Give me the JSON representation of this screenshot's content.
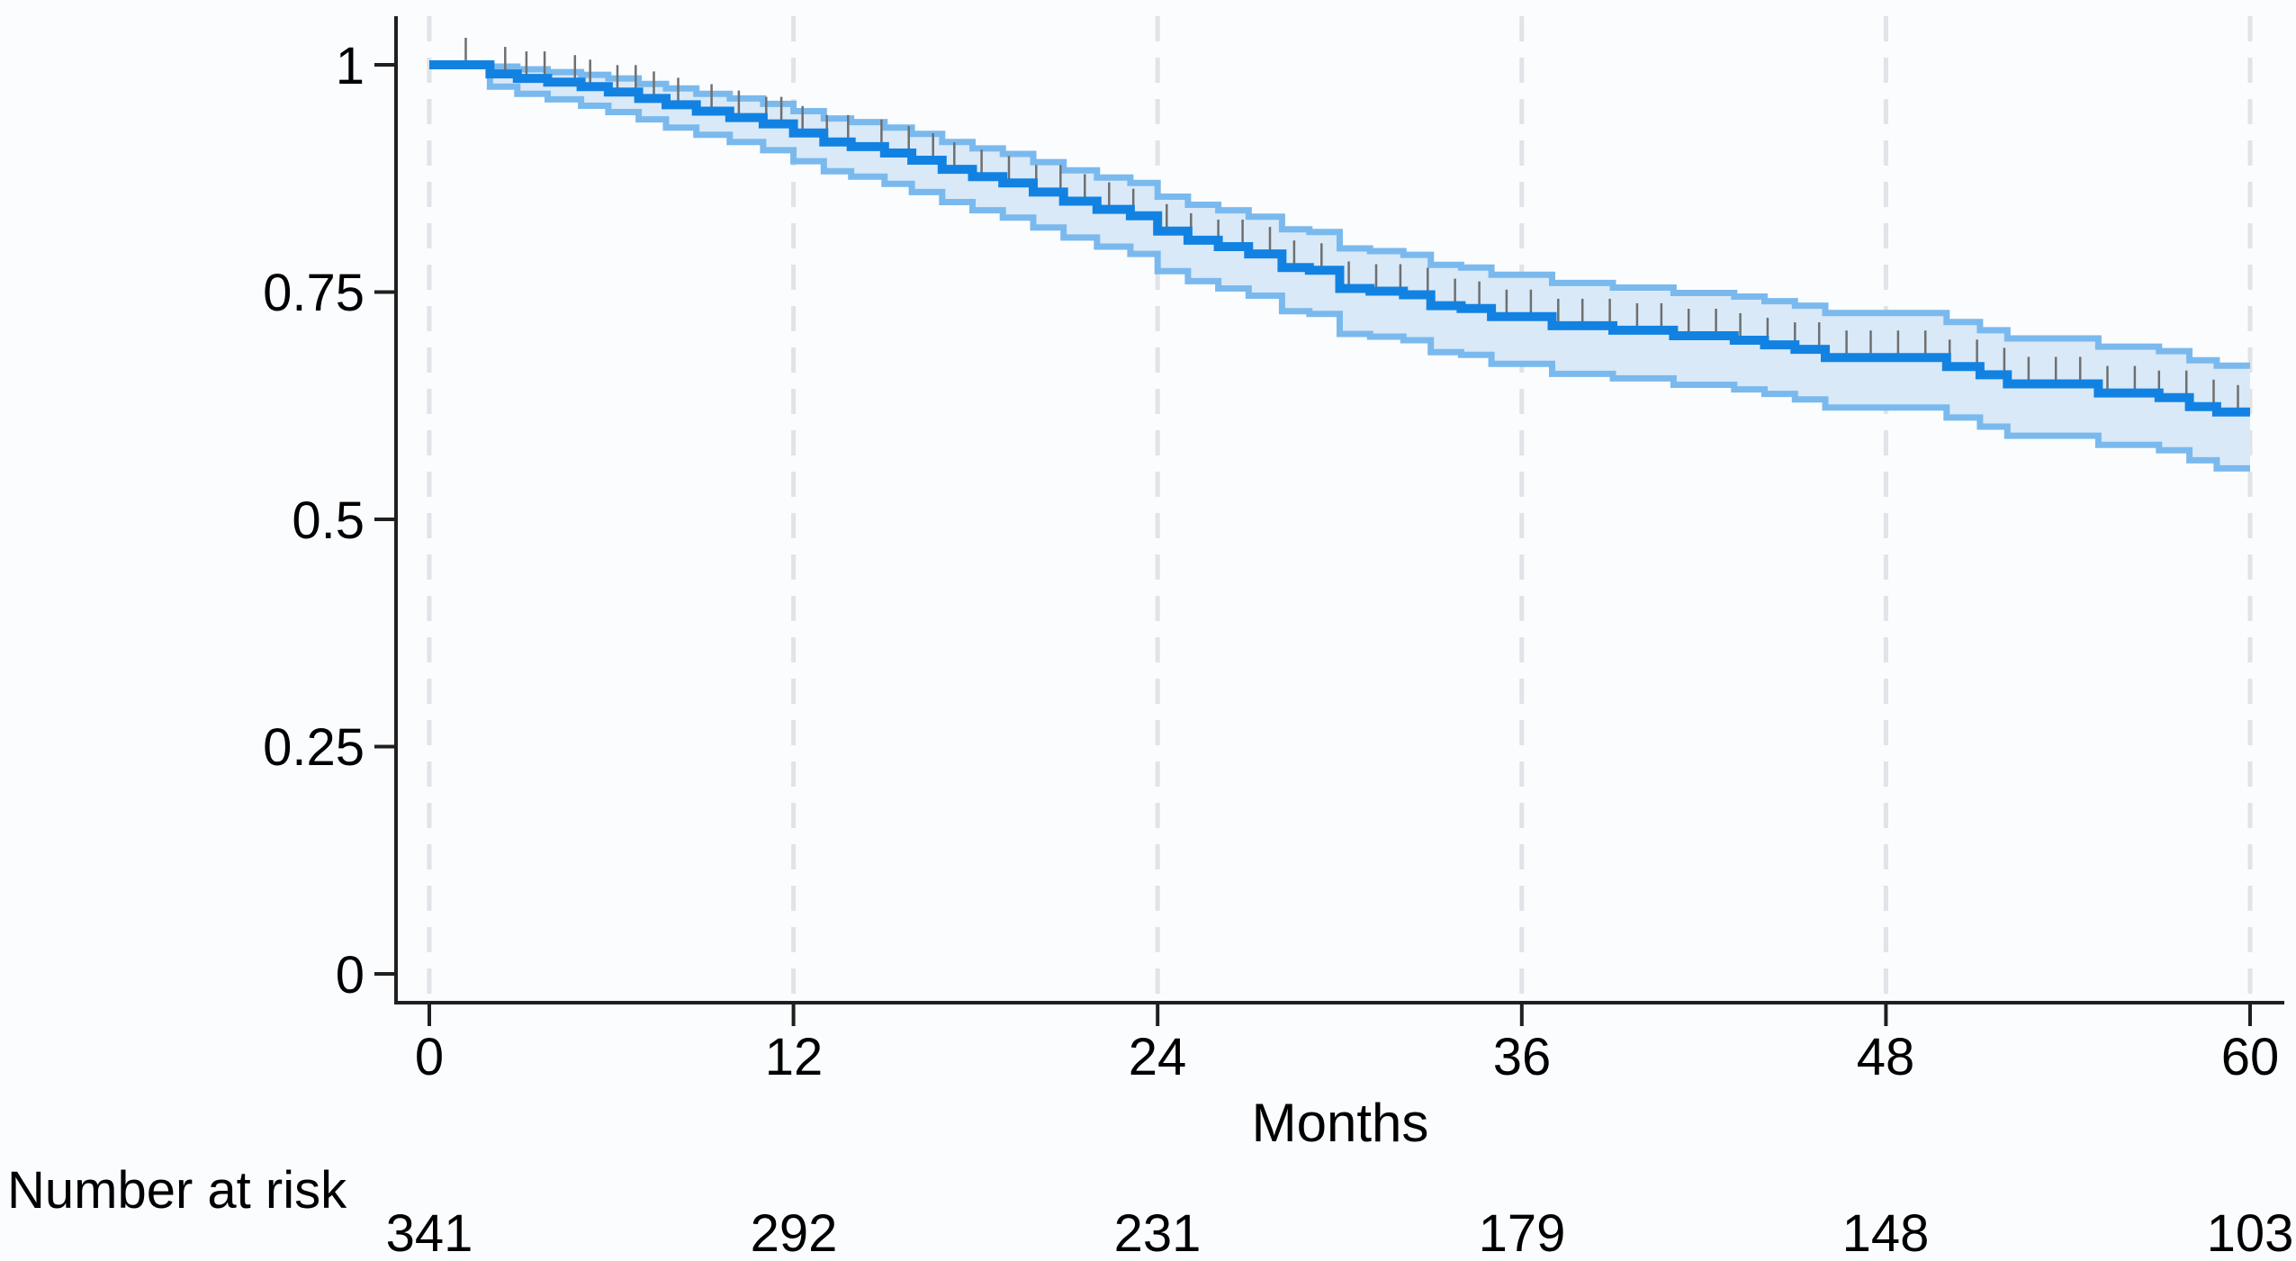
{
  "chart_data": {
    "type": "line",
    "subtype": "kaplan-meier-step",
    "title": "",
    "xlabel": "Months",
    "ylabel": "",
    "xlim": [
      0,
      60
    ],
    "ylim": [
      0,
      1
    ],
    "grid": "vertical-dashed",
    "legend": "none",
    "x_ticks": [
      0,
      12,
      24,
      36,
      48,
      60
    ],
    "y_ticks": [
      0,
      0.25,
      0.5,
      0.75,
      1
    ],
    "y_tick_labels": [
      "0",
      "0.25",
      "0.5",
      "0.75",
      "1"
    ],
    "series": [
      {
        "name": "survival",
        "role": "estimate",
        "steps": [
          [
            0,
            1.0
          ],
          [
            2,
            0.99
          ],
          [
            2.9,
            0.985
          ],
          [
            3.9,
            0.981
          ],
          [
            5,
            0.976
          ],
          [
            5.9,
            0.97
          ],
          [
            6.9,
            0.963
          ],
          [
            7.8,
            0.956
          ],
          [
            8.8,
            0.949
          ],
          [
            9.9,
            0.942
          ],
          [
            11,
            0.935
          ],
          [
            12,
            0.925
          ],
          [
            13,
            0.915
          ],
          [
            13.9,
            0.91
          ],
          [
            15,
            0.903
          ],
          [
            15.9,
            0.895
          ],
          [
            16.9,
            0.885
          ],
          [
            17.9,
            0.877
          ],
          [
            18.9,
            0.87
          ],
          [
            19.9,
            0.86
          ],
          [
            20.9,
            0.85
          ],
          [
            22,
            0.841
          ],
          [
            23.1,
            0.834
          ],
          [
            24,
            0.817
          ],
          [
            25,
            0.807
          ],
          [
            26,
            0.8
          ],
          [
            27,
            0.792
          ],
          [
            28.1,
            0.777
          ],
          [
            29,
            0.774
          ],
          [
            30,
            0.754
          ],
          [
            31,
            0.751
          ],
          [
            32.1,
            0.747
          ],
          [
            33,
            0.735
          ],
          [
            34,
            0.732
          ],
          [
            35,
            0.723
          ],
          [
            37,
            0.713
          ],
          [
            39,
            0.708
          ],
          [
            41,
            0.702
          ],
          [
            43,
            0.697
          ],
          [
            44,
            0.692
          ],
          [
            45,
            0.687
          ],
          [
            46,
            0.678
          ],
          [
            50,
            0.668
          ],
          [
            51.1,
            0.659
          ],
          [
            52,
            0.649
          ],
          [
            55,
            0.639
          ],
          [
            57,
            0.634
          ],
          [
            58,
            0.624
          ],
          [
            58.9,
            0.618
          ]
        ]
      },
      {
        "name": "ci_upper",
        "role": "confidence-upper",
        "steps": [
          [
            0,
            1.0
          ],
          [
            2,
            0.998
          ],
          [
            2.9,
            0.995
          ],
          [
            3.9,
            0.992
          ],
          [
            5,
            0.989
          ],
          [
            5.9,
            0.985
          ],
          [
            6.9,
            0.979
          ],
          [
            7.8,
            0.974
          ],
          [
            8.8,
            0.968
          ],
          [
            9.9,
            0.963
          ],
          [
            11,
            0.957
          ],
          [
            12,
            0.949
          ],
          [
            13,
            0.941
          ],
          [
            13.9,
            0.937
          ],
          [
            15,
            0.931
          ],
          [
            15.9,
            0.924
          ],
          [
            16.9,
            0.915
          ],
          [
            17.9,
            0.908
          ],
          [
            18.9,
            0.902
          ],
          [
            19.9,
            0.893
          ],
          [
            20.9,
            0.884
          ],
          [
            22,
            0.876
          ],
          [
            23.1,
            0.87
          ],
          [
            24,
            0.855
          ],
          [
            25,
            0.846
          ],
          [
            26,
            0.84
          ],
          [
            27,
            0.833
          ],
          [
            28.1,
            0.819
          ],
          [
            29,
            0.816
          ],
          [
            30,
            0.798
          ],
          [
            31,
            0.795
          ],
          [
            32.1,
            0.791
          ],
          [
            33,
            0.78
          ],
          [
            34,
            0.777
          ],
          [
            35,
            0.769
          ],
          [
            37,
            0.76
          ],
          [
            39,
            0.755
          ],
          [
            41,
            0.749
          ],
          [
            43,
            0.745
          ],
          [
            44,
            0.74
          ],
          [
            45,
            0.735
          ],
          [
            46,
            0.727
          ],
          [
            50,
            0.717
          ],
          [
            51.1,
            0.708
          ],
          [
            52,
            0.699
          ],
          [
            55,
            0.69
          ],
          [
            57,
            0.685
          ],
          [
            58,
            0.675
          ],
          [
            58.9,
            0.669
          ]
        ]
      },
      {
        "name": "ci_lower",
        "role": "confidence-lower",
        "steps": [
          [
            0,
            1.0
          ],
          [
            2,
            0.976
          ],
          [
            2.9,
            0.968
          ],
          [
            3.9,
            0.962
          ],
          [
            5,
            0.955
          ],
          [
            5.9,
            0.948
          ],
          [
            6.9,
            0.94
          ],
          [
            7.8,
            0.931
          ],
          [
            8.8,
            0.923
          ],
          [
            9.9,
            0.915
          ],
          [
            11,
            0.906
          ],
          [
            12,
            0.894
          ],
          [
            13,
            0.883
          ],
          [
            13.9,
            0.877
          ],
          [
            15,
            0.869
          ],
          [
            15.9,
            0.86
          ],
          [
            16.9,
            0.849
          ],
          [
            17.9,
            0.84
          ],
          [
            18.9,
            0.832
          ],
          [
            19.9,
            0.821
          ],
          [
            20.9,
            0.81
          ],
          [
            22,
            0.8
          ],
          [
            23.1,
            0.792
          ],
          [
            24,
            0.773
          ],
          [
            25,
            0.762
          ],
          [
            26,
            0.754
          ],
          [
            27,
            0.746
          ],
          [
            28.1,
            0.729
          ],
          [
            29,
            0.726
          ],
          [
            30,
            0.704
          ],
          [
            31,
            0.701
          ],
          [
            32.1,
            0.697
          ],
          [
            33,
            0.684
          ],
          [
            34,
            0.681
          ],
          [
            35,
            0.671
          ],
          [
            37,
            0.66
          ],
          [
            39,
            0.655
          ],
          [
            41,
            0.648
          ],
          [
            43,
            0.643
          ],
          [
            44,
            0.638
          ],
          [
            45,
            0.632
          ],
          [
            46,
            0.623
          ],
          [
            50,
            0.612
          ],
          [
            51.1,
            0.602
          ],
          [
            52,
            0.592
          ],
          [
            55,
            0.582
          ],
          [
            57,
            0.576
          ],
          [
            58,
            0.565
          ],
          [
            58.9,
            0.556
          ]
        ]
      }
    ],
    "censor_marks_months": [
      1.2,
      2.5,
      3.2,
      3.8,
      4.8,
      5.3,
      6.2,
      6.8,
      7.4,
      8.2,
      9.3,
      10.2,
      11.1,
      11.6,
      12.3,
      13.1,
      13.8,
      14.9,
      15.8,
      16.6,
      17.3,
      18.2,
      19.1,
      20.0,
      20.8,
      21.6,
      22.4,
      23.2,
      24.3,
      25.1,
      26.0,
      26.8,
      27.7,
      28.5,
      29.4,
      30.3,
      31.2,
      32.0,
      32.9,
      33.8,
      34.6,
      35.5,
      36.3,
      37.2,
      38.0,
      38.9,
      39.8,
      40.6,
      41.5,
      42.4,
      43.2,
      44.1,
      45.0,
      45.8,
      46.7,
      47.5,
      48.4,
      49.3,
      50.1,
      51.0,
      51.9,
      52.7,
      53.6,
      54.4,
      55.3,
      56.2,
      57.0,
      57.9,
      58.8,
      59.6
    ],
    "risk_table": {
      "label": "Number at risk",
      "months": [
        0,
        12,
        24,
        36,
        48,
        60
      ],
      "values": [
        "341",
        "292",
        "231",
        "179",
        "148",
        "103"
      ]
    },
    "colors": {
      "line": "#1282e2",
      "ci_line": "#7ab9ed",
      "ci_fill": "#d9e9f8",
      "grid": "#e0e3e7",
      "axis": "#1f1f1f",
      "censor": "#6f6f6f",
      "background": "#fbfcfe",
      "text": "#000000"
    }
  }
}
